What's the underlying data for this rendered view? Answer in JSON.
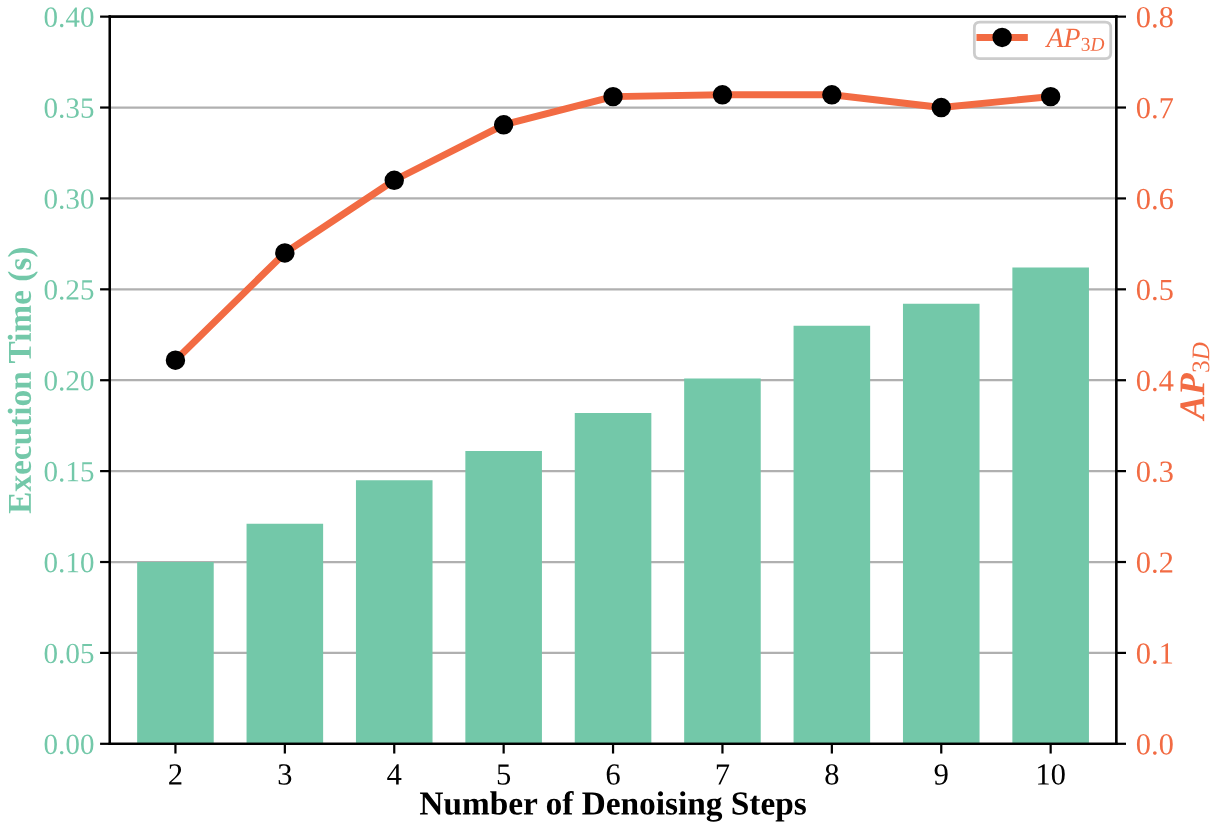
{
  "chart_data": {
    "type": "bar",
    "xlabel": "Number of Denoising Steps",
    "ylabel": "Execution Time (s)",
    "y2label": "AP$_{3D}$",
    "categories": [
      "2",
      "3",
      "4",
      "5",
      "6",
      "7",
      "8",
      "9",
      "10"
    ],
    "series": [
      {
        "color": "#73c8a9",
        "values": [
          0.1,
          0.121,
          0.145,
          0.161,
          0.182,
          0.201,
          0.23,
          0.242,
          0.262
        ]
      },
      {
        "type": "line",
        "name": "AP$_{3D}$",
        "axis": "y2",
        "color": "#f26b43",
        "marker": "circle",
        "values": [
          0.422,
          0.54,
          0.62,
          0.681,
          0.712,
          0.714,
          0.714,
          0.7,
          0.712
        ]
      }
    ],
    "ylim": [
      0,
      0.4
    ],
    "yticks": [
      {
        "value": 0,
        "label": "0.00"
      },
      {
        "value": 0.05,
        "label": "0.05"
      },
      {
        "value": 0.1,
        "label": "0.10"
      },
      {
        "value": 0.15,
        "label": "0.15"
      },
      {
        "value": 0.2,
        "label": "0.20"
      },
      {
        "value": 0.25,
        "label": "0.25"
      },
      {
        "value": 0.3,
        "label": "0.30"
      },
      {
        "value": 0.35,
        "label": "0.35"
      },
      {
        "value": 0.4,
        "label": "0.40"
      }
    ],
    "y2lim": [
      0,
      0.8
    ],
    "y2ticks": [
      {
        "value": 0,
        "label": "0.0"
      },
      {
        "value": 0.1,
        "label": "0.1"
      },
      {
        "value": 0.2,
        "label": "0.2"
      },
      {
        "value": 0.3,
        "label": "0.3"
      },
      {
        "value": 0.4,
        "label": "0.4"
      },
      {
        "value": 0.5,
        "label": "0.5"
      },
      {
        "value": 0.6,
        "label": "0.6"
      },
      {
        "value": 0.7,
        "label": "0.7"
      },
      {
        "value": 0.8,
        "label": "0.8"
      }
    ],
    "grid": "y",
    "legend": "top right",
    "line_style": "solid"
  }
}
